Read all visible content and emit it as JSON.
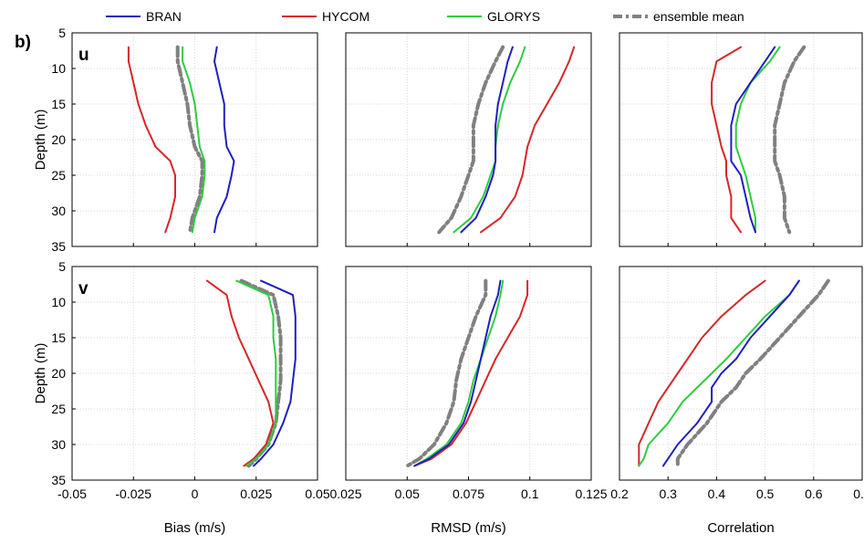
{
  "figure": {
    "panel_label": "b)",
    "legend": [
      {
        "key": "bran",
        "label": "BRAN",
        "color": "#1f1fbf",
        "dash": "solid"
      },
      {
        "key": "hycom",
        "label": "HYCOM",
        "color": "#d62728",
        "dash": "solid"
      },
      {
        "key": "glorys",
        "label": "GLORYS",
        "color": "#2ecc40",
        "dash": "solid"
      },
      {
        "key": "ens",
        "label": "ensemble mean",
        "color": "#808080",
        "dash": "dashdot"
      }
    ],
    "ylabel": "Depth (m)",
    "row_labels": [
      "u",
      "v"
    ],
    "xlabels": [
      "Bias (m/s)",
      "RMSD (m/s)",
      "Correlation"
    ]
  },
  "chart_data": [
    {
      "type": "line",
      "row": 0,
      "col": 0,
      "component": "u",
      "xlabel": "",
      "ylabel": "Depth (m)",
      "ylim": [
        35,
        5
      ],
      "xlim": [
        -0.05,
        0.05
      ],
      "grid": true,
      "series": [
        {
          "name": "BRAN",
          "x": [
            0.009,
            0.008,
            0.01,
            0.012,
            0.012,
            0.013,
            0.016,
            0.015,
            0.013,
            0.009,
            0.008
          ],
          "y": [
            7,
            9,
            12,
            15,
            18,
            21,
            23,
            25,
            28,
            31,
            33
          ]
        },
        {
          "name": "HYCOM",
          "x": [
            -0.027,
            -0.027,
            -0.025,
            -0.023,
            -0.02,
            -0.016,
            -0.01,
            -0.008,
            -0.008,
            -0.01,
            -0.012
          ],
          "y": [
            7,
            9,
            12,
            15,
            18,
            21,
            23,
            25,
            28,
            31,
            33
          ]
        },
        {
          "name": "GLORYS",
          "x": [
            -0.005,
            -0.005,
            -0.002,
            0.0,
            0.001,
            0.002,
            0.004,
            0.004,
            0.003,
            0.0,
            -0.001
          ],
          "y": [
            7,
            9,
            12,
            15,
            18,
            21,
            23,
            25,
            28,
            31,
            33
          ]
        },
        {
          "name": "ensemble mean",
          "x": [
            -0.007,
            -0.007,
            -0.005,
            -0.003,
            -0.002,
            0.0,
            0.003,
            0.003,
            0.002,
            -0.001,
            -0.002
          ],
          "y": [
            7,
            9,
            12,
            15,
            18,
            21,
            23,
            25,
            28,
            31,
            33
          ]
        }
      ]
    },
    {
      "type": "line",
      "row": 0,
      "col": 1,
      "component": "u",
      "xlabel": "",
      "ylabel": "",
      "ylim": [
        35,
        5
      ],
      "xlim": [
        0.025,
        0.125
      ],
      "grid": true,
      "series": [
        {
          "name": "BRAN",
          "x": [
            0.093,
            0.091,
            0.089,
            0.087,
            0.086,
            0.086,
            0.086,
            0.085,
            0.082,
            0.078,
            0.072
          ],
          "y": [
            7,
            9,
            12,
            15,
            18,
            21,
            23,
            25,
            28,
            31,
            33
          ]
        },
        {
          "name": "HYCOM",
          "x": [
            0.118,
            0.116,
            0.112,
            0.107,
            0.102,
            0.099,
            0.098,
            0.097,
            0.094,
            0.088,
            0.08
          ],
          "y": [
            7,
            9,
            12,
            15,
            18,
            21,
            23,
            25,
            28,
            31,
            33
          ]
        },
        {
          "name": "GLORYS",
          "x": [
            0.098,
            0.096,
            0.092,
            0.089,
            0.087,
            0.086,
            0.086,
            0.084,
            0.081,
            0.076,
            0.069
          ],
          "y": [
            7,
            9,
            12,
            15,
            18,
            21,
            23,
            25,
            28,
            31,
            33
          ]
        },
        {
          "name": "ensemble mean",
          "x": [
            0.089,
            0.086,
            0.082,
            0.079,
            0.077,
            0.077,
            0.077,
            0.075,
            0.072,
            0.068,
            0.063
          ],
          "y": [
            7,
            9,
            12,
            15,
            18,
            21,
            23,
            25,
            28,
            31,
            33
          ]
        }
      ]
    },
    {
      "type": "line",
      "row": 0,
      "col": 2,
      "component": "u",
      "xlabel": "",
      "ylabel": "",
      "ylim": [
        35,
        5
      ],
      "xlim": [
        0.2,
        0.7
      ],
      "grid": true,
      "series": [
        {
          "name": "BRAN",
          "x": [
            0.52,
            0.5,
            0.47,
            0.44,
            0.43,
            0.43,
            0.43,
            0.45,
            0.46,
            0.47,
            0.48
          ],
          "y": [
            7,
            9,
            12,
            15,
            18,
            21,
            23,
            25,
            28,
            31,
            33
          ]
        },
        {
          "name": "HYCOM",
          "x": [
            0.45,
            0.4,
            0.39,
            0.39,
            0.4,
            0.41,
            0.42,
            0.42,
            0.43,
            0.43,
            0.45
          ],
          "y": [
            7,
            9,
            12,
            15,
            18,
            21,
            23,
            25,
            28,
            31,
            33
          ]
        },
        {
          "name": "GLORYS",
          "x": [
            0.53,
            0.51,
            0.47,
            0.45,
            0.44,
            0.44,
            0.45,
            0.46,
            0.47,
            0.48,
            0.48
          ],
          "y": [
            7,
            9,
            12,
            15,
            18,
            21,
            23,
            25,
            28,
            31,
            33
          ]
        },
        {
          "name": "ensemble mean",
          "x": [
            0.58,
            0.56,
            0.54,
            0.53,
            0.52,
            0.52,
            0.52,
            0.53,
            0.54,
            0.54,
            0.55
          ],
          "y": [
            7,
            9,
            12,
            15,
            18,
            21,
            23,
            25,
            28,
            31,
            33
          ]
        }
      ]
    },
    {
      "type": "line",
      "row": 1,
      "col": 0,
      "component": "v",
      "xlabel": "Bias (m/s)",
      "ylabel": "Depth (m)",
      "ylim": [
        35,
        5
      ],
      "xlim": [
        -0.05,
        0.05
      ],
      "grid": true,
      "series": [
        {
          "name": "BRAN",
          "x": [
            0.027,
            0.04,
            0.041,
            0.041,
            0.041,
            0.04,
            0.039,
            0.036,
            0.032,
            0.027,
            0.024
          ],
          "y": [
            7,
            9,
            12,
            15,
            18,
            21,
            24,
            27,
            30,
            32,
            33
          ]
        },
        {
          "name": "HYCOM",
          "x": [
            0.005,
            0.013,
            0.015,
            0.018,
            0.022,
            0.026,
            0.03,
            0.032,
            0.029,
            0.024,
            0.02
          ],
          "y": [
            7,
            9,
            12,
            15,
            18,
            21,
            24,
            27,
            30,
            32,
            33
          ]
        },
        {
          "name": "GLORYS",
          "x": [
            0.017,
            0.03,
            0.032,
            0.032,
            0.033,
            0.033,
            0.033,
            0.033,
            0.03,
            0.025,
            0.021
          ],
          "y": [
            7,
            9,
            12,
            15,
            18,
            21,
            24,
            27,
            30,
            32,
            33
          ]
        },
        {
          "name": "ensemble mean",
          "x": [
            0.019,
            0.032,
            0.034,
            0.035,
            0.035,
            0.035,
            0.034,
            0.033,
            0.03,
            0.025,
            0.022
          ],
          "y": [
            7,
            9,
            12,
            15,
            18,
            21,
            24,
            27,
            30,
            32,
            33
          ]
        }
      ]
    },
    {
      "type": "line",
      "row": 1,
      "col": 1,
      "component": "v",
      "xlabel": "RMSD (m/s)",
      "ylabel": "",
      "ylim": [
        35,
        5
      ],
      "xlim": [
        0.025,
        0.125
      ],
      "grid": true,
      "series": [
        {
          "name": "BRAN",
          "x": [
            0.088,
            0.087,
            0.084,
            0.082,
            0.08,
            0.078,
            0.076,
            0.073,
            0.067,
            0.059,
            0.053
          ],
          "y": [
            7,
            9,
            12,
            15,
            18,
            21,
            24,
            27,
            30,
            32,
            33
          ]
        },
        {
          "name": "HYCOM",
          "x": [
            0.099,
            0.099,
            0.096,
            0.091,
            0.086,
            0.082,
            0.078,
            0.074,
            0.068,
            0.06,
            0.053
          ],
          "y": [
            7,
            9,
            12,
            15,
            18,
            21,
            24,
            27,
            30,
            32,
            33
          ]
        },
        {
          "name": "GLORYS",
          "x": [
            0.089,
            0.088,
            0.086,
            0.083,
            0.08,
            0.077,
            0.075,
            0.072,
            0.066,
            0.058,
            0.053
          ],
          "y": [
            7,
            9,
            12,
            15,
            18,
            21,
            24,
            27,
            30,
            32,
            33
          ]
        },
        {
          "name": "ensemble mean",
          "x": [
            0.082,
            0.082,
            0.078,
            0.075,
            0.072,
            0.07,
            0.069,
            0.066,
            0.061,
            0.055,
            0.05
          ],
          "y": [
            7,
            9,
            12,
            15,
            18,
            21,
            24,
            27,
            30,
            32,
            33
          ]
        }
      ]
    },
    {
      "type": "line",
      "row": 1,
      "col": 2,
      "component": "v",
      "xlabel": "Correlation",
      "ylabel": "",
      "ylim": [
        35,
        5
      ],
      "xlim": [
        0.2,
        0.7
      ],
      "grid": true,
      "series": [
        {
          "name": "BRAN",
          "x": [
            0.57,
            0.55,
            0.51,
            0.47,
            0.44,
            0.41,
            0.39,
            0.39,
            0.36,
            0.32,
            0.3,
            0.29
          ],
          "y": [
            7,
            9,
            12,
            15,
            18,
            20,
            22,
            24,
            27,
            30,
            32,
            33
          ]
        },
        {
          "name": "HYCOM",
          "x": [
            0.5,
            0.46,
            0.41,
            0.37,
            0.34,
            0.32,
            0.3,
            0.28,
            0.26,
            0.24,
            0.24,
            0.24
          ],
          "y": [
            7,
            9,
            12,
            15,
            18,
            20,
            22,
            24,
            27,
            30,
            32,
            33
          ]
        },
        {
          "name": "GLORYS",
          "x": [
            0.57,
            0.55,
            0.5,
            0.46,
            0.42,
            0.39,
            0.36,
            0.33,
            0.3,
            0.26,
            0.25,
            0.24
          ],
          "y": [
            7,
            9,
            12,
            15,
            18,
            20,
            22,
            24,
            27,
            30,
            32,
            33
          ]
        },
        {
          "name": "ensemble mean",
          "x": [
            0.63,
            0.61,
            0.57,
            0.53,
            0.49,
            0.46,
            0.44,
            0.41,
            0.38,
            0.34,
            0.32,
            0.32
          ],
          "y": [
            7,
            9,
            12,
            15,
            18,
            20,
            22,
            24,
            27,
            30,
            32,
            33
          ]
        }
      ]
    }
  ]
}
